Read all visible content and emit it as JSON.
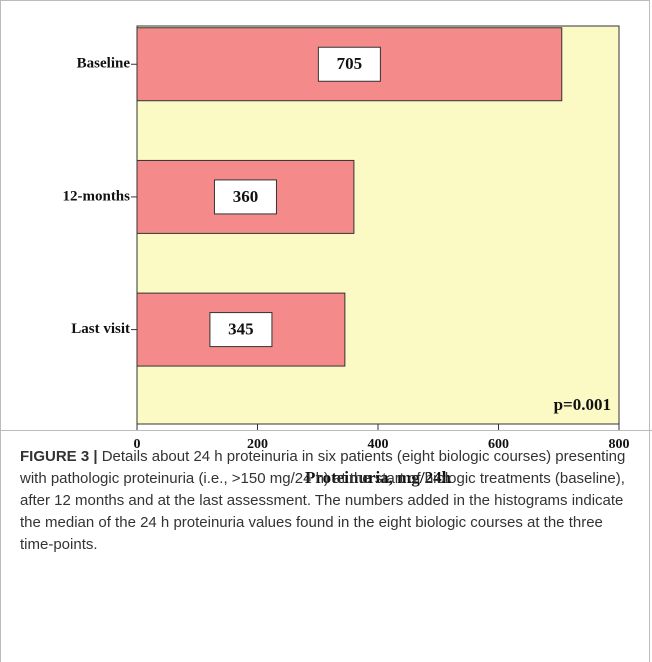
{
  "chart_data": {
    "type": "barh",
    "categories": [
      "Baseline",
      "12-months",
      "Last visit"
    ],
    "values": [
      705,
      360,
      345
    ],
    "color": "#f48a8a",
    "background": "#fcfac4",
    "xlim": [
      0,
      800
    ],
    "xticks": [
      0,
      200,
      400,
      600,
      800
    ],
    "xlabel": "Proteinuria, mg/24h",
    "annotation": "p=0.001",
    "value_labels_shown": true
  },
  "caption": {
    "label": "FIGURE 3 |",
    "text": "Details about 24 h proteinuria in six patients (eight biologic courses) presenting with pathologic proteinuria (i.e., >150 mg/24 h) at the start of biologic treatments (baseline), after 12 months and at the last assessment. The numbers added in the histograms indicate the median of the 24 h proteinuria values found in the eight biologic courses at the three time-points."
  }
}
